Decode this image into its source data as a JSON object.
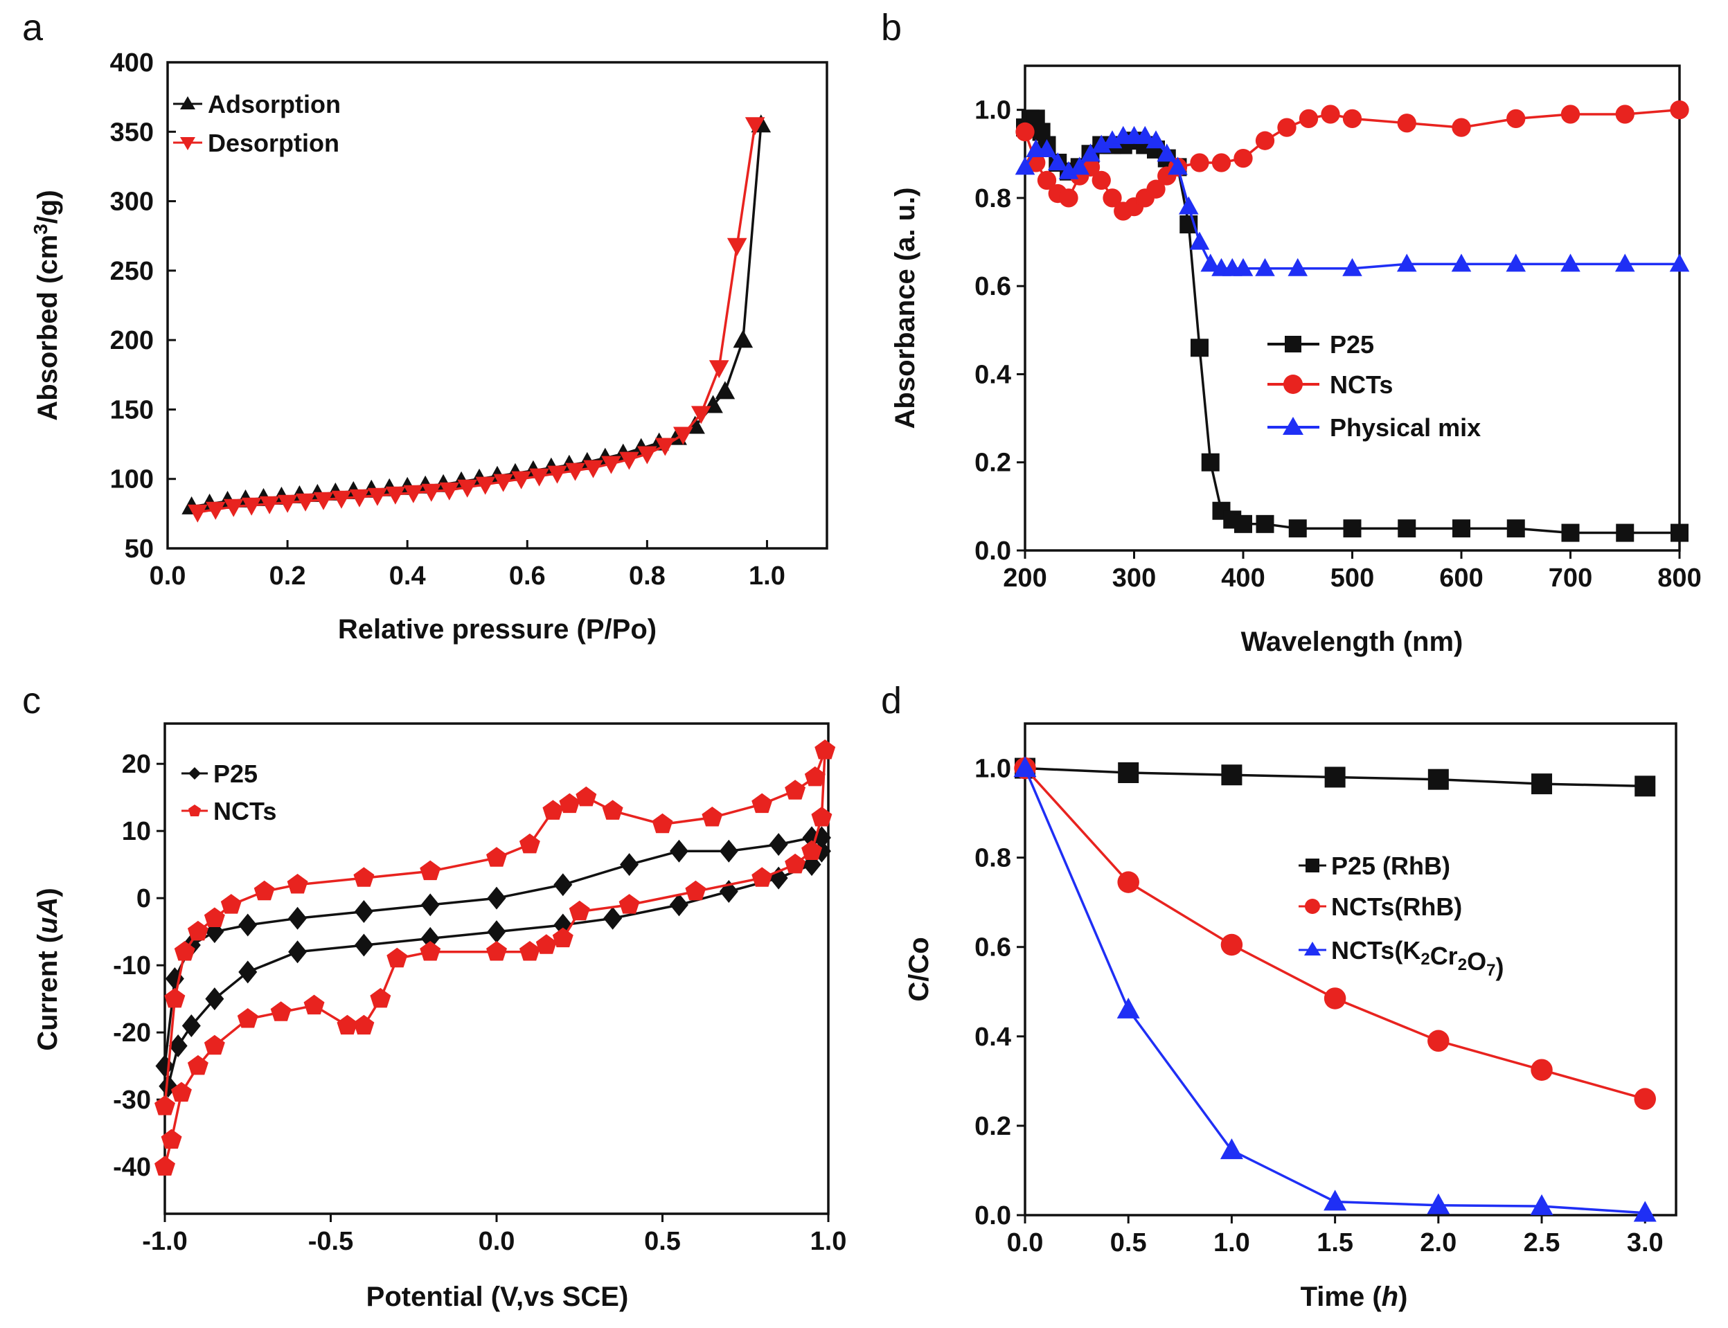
{
  "chart_data": [
    {
      "panel": "a",
      "type": "line",
      "xlabel": "Relative pressure (P/Po)",
      "ylabel_pre": "Absorbed (cm",
      "ylabel_sup": "3",
      "ylabel_post": "/g)",
      "xlim": [
        0.0,
        1.1
      ],
      "ylim": [
        50,
        400
      ],
      "xticks": [
        "0.0",
        "0.2",
        "0.4",
        "0.6",
        "0.8",
        "1.0"
      ],
      "yticks": [
        "50",
        "100",
        "150",
        "200",
        "250",
        "300",
        "350",
        "400"
      ],
      "legend_position": "top-left",
      "series": [
        {
          "name": "Adsorption",
          "color": "#111111",
          "marker": "triangle-up",
          "x": [
            0.04,
            0.07,
            0.1,
            0.13,
            0.16,
            0.19,
            0.22,
            0.25,
            0.28,
            0.31,
            0.34,
            0.37,
            0.4,
            0.43,
            0.46,
            0.49,
            0.52,
            0.55,
            0.58,
            0.61,
            0.64,
            0.67,
            0.7,
            0.73,
            0.76,
            0.79,
            0.82,
            0.85,
            0.88,
            0.91,
            0.93,
            0.96,
            0.99
          ],
          "y": [
            80,
            82,
            84,
            85,
            86,
            87,
            88,
            89,
            90,
            91,
            92,
            93,
            94,
            95,
            96,
            98,
            100,
            102,
            104,
            106,
            108,
            110,
            112,
            115,
            118,
            122,
            126,
            130,
            138,
            153,
            163,
            200,
            355
          ]
        },
        {
          "name": "Desorption",
          "color": "#e8231f",
          "marker": "triangle-down",
          "x": [
            0.05,
            0.08,
            0.11,
            0.14,
            0.17,
            0.2,
            0.23,
            0.26,
            0.29,
            0.32,
            0.35,
            0.38,
            0.41,
            0.44,
            0.47,
            0.5,
            0.53,
            0.56,
            0.59,
            0.62,
            0.65,
            0.68,
            0.71,
            0.74,
            0.77,
            0.8,
            0.83,
            0.86,
            0.89,
            0.92,
            0.95,
            0.98
          ],
          "y": [
            76,
            78,
            80,
            81,
            82,
            83,
            84,
            85,
            86,
            87,
            88,
            89,
            90,
            91,
            92,
            94,
            96,
            98,
            100,
            102,
            104,
            106,
            108,
            111,
            114,
            118,
            124,
            132,
            147,
            180,
            268,
            355
          ]
        }
      ]
    },
    {
      "panel": "b",
      "type": "line",
      "xlabel": "Wavelength (nm)",
      "ylabel": "Absorbance (a. u.)",
      "xlim": [
        200,
        800
      ],
      "ylim": [
        0.0,
        1.1
      ],
      "xticks": [
        "200",
        "300",
        "400",
        "500",
        "600",
        "700",
        "800"
      ],
      "yticks": [
        "0.0",
        "0.2",
        "0.4",
        "0.6",
        "0.8",
        "1.0"
      ],
      "legend_position": "center-right",
      "series": [
        {
          "name": "P25",
          "color": "#111111",
          "marker": "square",
          "x": [
            200,
            205,
            210,
            215,
            220,
            230,
            240,
            250,
            260,
            270,
            280,
            290,
            300,
            310,
            320,
            330,
            340,
            350,
            360,
            370,
            380,
            390,
            400,
            420,
            450,
            500,
            550,
            600,
            650,
            700,
            750,
            800
          ],
          "y": [
            0.96,
            0.98,
            0.98,
            0.95,
            0.92,
            0.88,
            0.86,
            0.87,
            0.9,
            0.92,
            0.92,
            0.92,
            0.93,
            0.92,
            0.91,
            0.89,
            0.87,
            0.74,
            0.46,
            0.2,
            0.09,
            0.07,
            0.06,
            0.06,
            0.05,
            0.05,
            0.05,
            0.05,
            0.05,
            0.04,
            0.04,
            0.04
          ]
        },
        {
          "name": "NCTs",
          "color": "#e8231f",
          "marker": "circle",
          "x": [
            200,
            210,
            220,
            230,
            240,
            250,
            260,
            270,
            280,
            290,
            300,
            310,
            320,
            330,
            340,
            360,
            380,
            400,
            420,
            440,
            460,
            480,
            500,
            550,
            600,
            650,
            700,
            750,
            800
          ],
          "y": [
            0.95,
            0.88,
            0.84,
            0.81,
            0.8,
            0.85,
            0.87,
            0.84,
            0.8,
            0.77,
            0.78,
            0.8,
            0.82,
            0.85,
            0.87,
            0.88,
            0.88,
            0.89,
            0.93,
            0.96,
            0.98,
            0.99,
            0.98,
            0.97,
            0.96,
            0.98,
            0.99,
            0.99,
            1.0
          ]
        },
        {
          "name": "Physical mix",
          "color": "#1f2ff5",
          "marker": "triangle-up",
          "x": [
            200,
            210,
            220,
            230,
            240,
            250,
            260,
            270,
            280,
            290,
            300,
            310,
            320,
            330,
            340,
            350,
            360,
            370,
            380,
            390,
            400,
            420,
            450,
            500,
            550,
            600,
            650,
            700,
            750,
            800
          ],
          "y": [
            0.87,
            0.91,
            0.91,
            0.88,
            0.86,
            0.87,
            0.9,
            0.92,
            0.93,
            0.94,
            0.94,
            0.94,
            0.93,
            0.9,
            0.87,
            0.78,
            0.7,
            0.65,
            0.64,
            0.64,
            0.64,
            0.64,
            0.64,
            0.64,
            0.65,
            0.65,
            0.65,
            0.65,
            0.65,
            0.65
          ]
        }
      ]
    },
    {
      "panel": "c",
      "type": "line",
      "xlabel": "Potential (V,vs SCE)",
      "ylabel_pre": "Current (",
      "ylabel_unit": "uA",
      "ylabel_post": ")",
      "xlim": [
        -1.0,
        1.0
      ],
      "ylim": [
        -47,
        26
      ],
      "xticks": [
        "-1.0",
        "-0.5",
        "0.0",
        "0.5",
        "1.0"
      ],
      "yticks": [
        "-40",
        "-30",
        "-20",
        "-10",
        "0",
        "10",
        "20"
      ],
      "legend_position": "top-left",
      "series": [
        {
          "name": "P25",
          "color": "#111111",
          "marker": "diamond",
          "x": [
            -1.0,
            -0.97,
            -0.92,
            -0.85,
            -0.75,
            -0.6,
            -0.4,
            -0.2,
            0.0,
            0.2,
            0.4,
            0.55,
            0.7,
            0.85,
            0.95,
            0.98,
            0.98,
            0.95,
            0.85,
            0.7,
            0.55,
            0.35,
            0.2,
            0.0,
            -0.2,
            -0.4,
            -0.6,
            -0.75,
            -0.85,
            -0.92,
            -0.96,
            -0.99
          ],
          "y": [
            -25,
            -12,
            -7,
            -5,
            -4,
            -3,
            -2,
            -1,
            0,
            2,
            5,
            7,
            7,
            8,
            9,
            9,
            7,
            5,
            3,
            1,
            -1,
            -3,
            -4,
            -5,
            -6,
            -7,
            -8,
            -11,
            -15,
            -19,
            -22,
            -28
          ]
        },
        {
          "name": "NCTs",
          "color": "#e8231f",
          "marker": "pentagon",
          "x": [
            -1.0,
            -0.97,
            -0.94,
            -0.9,
            -0.85,
            -0.8,
            -0.7,
            -0.6,
            -0.4,
            -0.2,
            0.0,
            0.1,
            0.17,
            0.22,
            0.27,
            0.35,
            0.5,
            0.65,
            0.8,
            0.9,
            0.96,
            0.99,
            0.98,
            0.95,
            0.9,
            0.8,
            0.6,
            0.4,
            0.25,
            0.2,
            0.15,
            0.1,
            0.0,
            -0.2,
            -0.3,
            -0.35,
            -0.4,
            -0.45,
            -0.55,
            -0.65,
            -0.75,
            -0.85,
            -0.9,
            -0.95,
            -0.98,
            -1.0
          ],
          "y": [
            -31,
            -15,
            -8,
            -5,
            -3,
            -1,
            1,
            2,
            3,
            4,
            6,
            8,
            13,
            14,
            15,
            13,
            11,
            12,
            14,
            16,
            18,
            22,
            12,
            7,
            5,
            3,
            1,
            -1,
            -2,
            -6,
            -7,
            -8,
            -8,
            -8,
            -9,
            -15,
            -19,
            -19,
            -16,
            -17,
            -18,
            -22,
            -25,
            -29,
            -36,
            -40
          ]
        }
      ]
    },
    {
      "panel": "d",
      "type": "line",
      "xlabel_pre": "Time (",
      "xlabel_unit": "h",
      "xlabel_post": ")",
      "ylabel": "C/Co",
      "xlim": [
        0.0,
        3.15
      ],
      "ylim": [
        0.0,
        1.1
      ],
      "xticks": [
        "0.0",
        "0.5",
        "1.0",
        "1.5",
        "2.0",
        "2.5",
        "3.0"
      ],
      "yticks": [
        "0.0",
        "0.2",
        "0.4",
        "0.6",
        "0.8",
        "1.0"
      ],
      "legend_position": "center-right",
      "series": [
        {
          "name": "P25 (RhB)",
          "color": "#111111",
          "marker": "square",
          "x": [
            0.0,
            0.5,
            1.0,
            1.5,
            2.0,
            2.5,
            3.0
          ],
          "y": [
            1.0,
            0.99,
            0.985,
            0.98,
            0.975,
            0.965,
            0.96
          ]
        },
        {
          "name": "NCTs(RhB)",
          "color": "#e8231f",
          "marker": "circle",
          "x": [
            0.0,
            0.5,
            1.0,
            1.5,
            2.0,
            2.5,
            3.0
          ],
          "y": [
            1.0,
            0.745,
            0.605,
            0.485,
            0.39,
            0.325,
            0.26
          ]
        },
        {
          "name": "NCTs(K2Cr2O7)",
          "color": "#1f2ff5",
          "marker": "triangle-up",
          "x": [
            0.0,
            0.5,
            1.0,
            1.5,
            2.0,
            2.5,
            3.0
          ],
          "y": [
            1.0,
            0.46,
            0.145,
            0.03,
            0.022,
            0.02,
            0.005
          ]
        }
      ]
    }
  ]
}
